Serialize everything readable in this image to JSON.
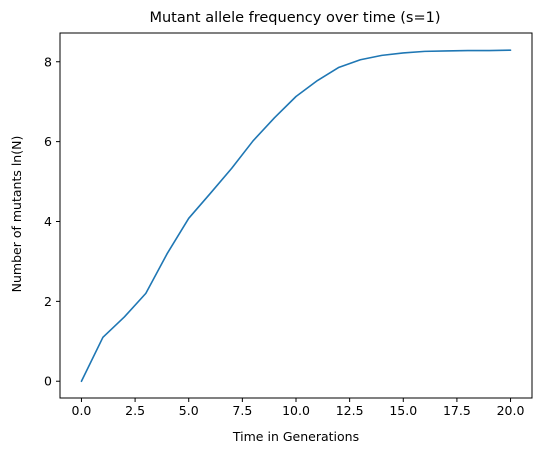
{
  "chart_data": {
    "type": "line",
    "title": "Mutant allele frequency over time (s=1)",
    "xlabel": "Time in Generations",
    "ylabel": "Number of mutants ln(N)",
    "xlim": [
      -1.0,
      21.0
    ],
    "ylim": [
      -0.42,
      8.72
    ],
    "xticks": [
      0.0,
      2.5,
      5.0,
      7.5,
      10.0,
      12.5,
      15.0,
      17.5,
      20.0
    ],
    "xtick_labels": [
      "0.0",
      "2.5",
      "5.0",
      "7.5",
      "10.0",
      "12.5",
      "15.0",
      "17.5",
      "20.0"
    ],
    "yticks": [
      0,
      2,
      4,
      6,
      8
    ],
    "ytick_labels": [
      "0",
      "2",
      "4",
      "6",
      "8"
    ],
    "grid": false,
    "series": [
      {
        "color": "#1f77b4",
        "x": [
          0,
          1,
          2,
          3,
          4,
          5,
          6,
          7,
          8,
          9,
          10,
          11,
          12,
          13,
          14,
          15,
          16,
          17,
          18,
          19,
          20
        ],
        "y": [
          0.0,
          1.1,
          1.61,
          2.2,
          3.2,
          4.08,
          4.7,
          5.33,
          6.02,
          6.6,
          7.13,
          7.53,
          7.86,
          8.05,
          8.16,
          8.22,
          8.26,
          8.27,
          8.28,
          8.28,
          8.29
        ]
      }
    ]
  }
}
